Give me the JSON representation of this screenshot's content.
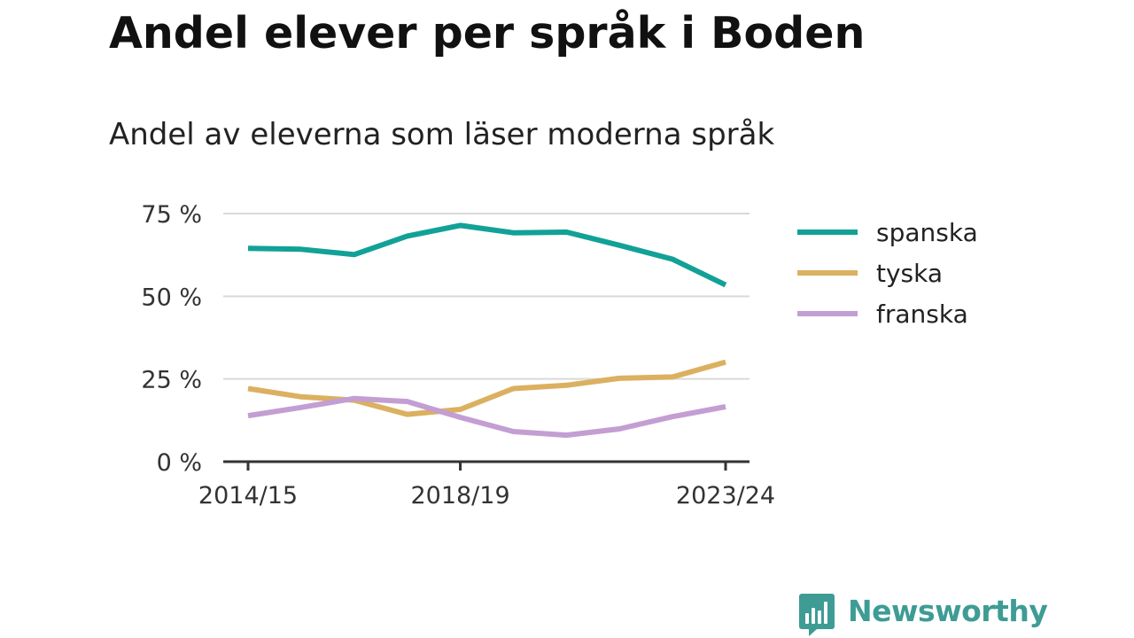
{
  "title": "Andel elever per språk i Boden",
  "subtitle": "Andel av eleverna som läser moderna språk",
  "brand": {
    "name": "Newsworthy",
    "color": "#3e9c95",
    "icon": "bar-chart-speech-bubble-icon"
  },
  "chart_data": {
    "type": "line",
    "x": [
      "2014/15",
      "2015/16",
      "2016/17",
      "2017/18",
      "2018/19",
      "2019/20",
      "2020/21",
      "2021/22",
      "2022/23",
      "2023/24"
    ],
    "x_ticks": [
      "2014/15",
      "2018/19",
      "2023/24"
    ],
    "y_ticks": [
      0,
      25,
      50,
      75
    ],
    "y_tick_labels": [
      "0 %",
      "25 %",
      "50 %",
      "75 %"
    ],
    "ylim": [
      0,
      75
    ],
    "grid": true,
    "legend_position": "right",
    "series": [
      {
        "name": "spanska",
        "color": "#12a197",
        "values": [
          64.5,
          64.2,
          62.6,
          68.2,
          71.4,
          69.2,
          69.4,
          65.4,
          61.2,
          53.4
        ]
      },
      {
        "name": "tyska",
        "color": "#dbb060",
        "values": [
          22.1,
          19.6,
          18.6,
          14.3,
          15.8,
          22.1,
          23.1,
          25.2,
          25.6,
          30.1
        ]
      },
      {
        "name": "franska",
        "color": "#c39ed3",
        "values": [
          13.9,
          16.4,
          19.1,
          18.2,
          13.4,
          9.1,
          8.0,
          9.9,
          13.6,
          16.6
        ]
      }
    ]
  }
}
